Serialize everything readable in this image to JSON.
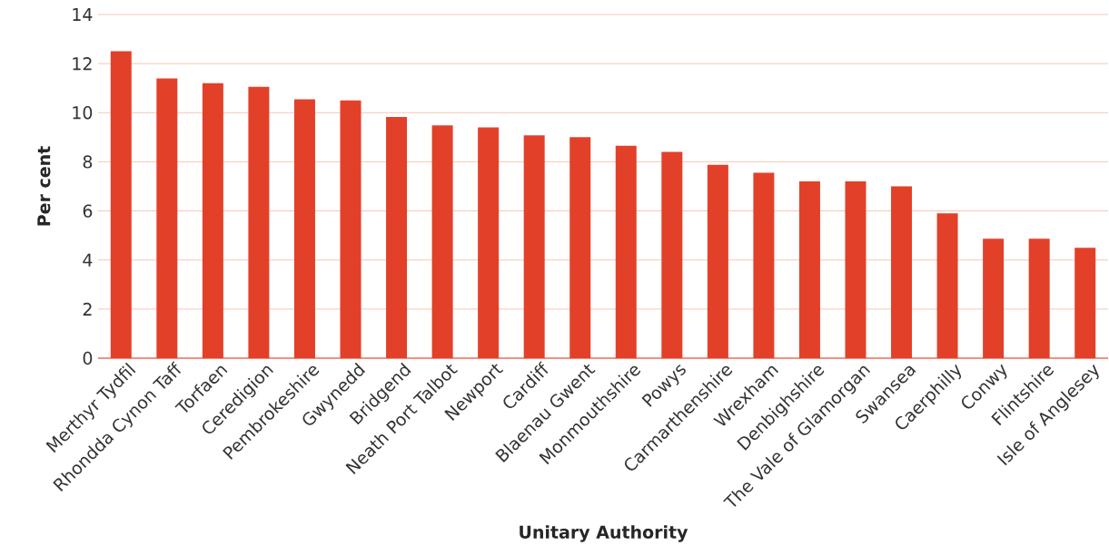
{
  "chart_data": {
    "type": "bar",
    "xlabel": "Unitary Authority",
    "ylabel": "Per cent",
    "categories": [
      "Merthyr Tydfil",
      "Rhondda Cynon Taff",
      "Torfaen",
      "Ceredigion",
      "Pembrokeshire",
      "Gwynedd",
      "Bridgend",
      "Neath Port Talbot",
      "Newport",
      "Cardiff",
      "Blaenau Gwent",
      "Monmouthshire",
      "Powys",
      "Carmarthenshire",
      "Wrexham",
      "Denbighshire",
      "The Vale of Glamorgan",
      "Swansea",
      "Caerphilly",
      "Conwy",
      "Flintshire",
      "Isle of Anglesey"
    ],
    "values": [
      12.5,
      11.4,
      11.2,
      11.05,
      10.55,
      10.5,
      9.83,
      9.48,
      9.4,
      9.08,
      9.0,
      8.65,
      8.4,
      7.88,
      7.55,
      7.2,
      7.2,
      7.0,
      5.9,
      4.87,
      4.87,
      4.5
    ],
    "color": "#e34029",
    "ylim": [
      0,
      14
    ],
    "yticks": [
      0,
      2,
      4,
      6,
      8,
      10,
      12,
      14
    ],
    "grid": "y"
  }
}
